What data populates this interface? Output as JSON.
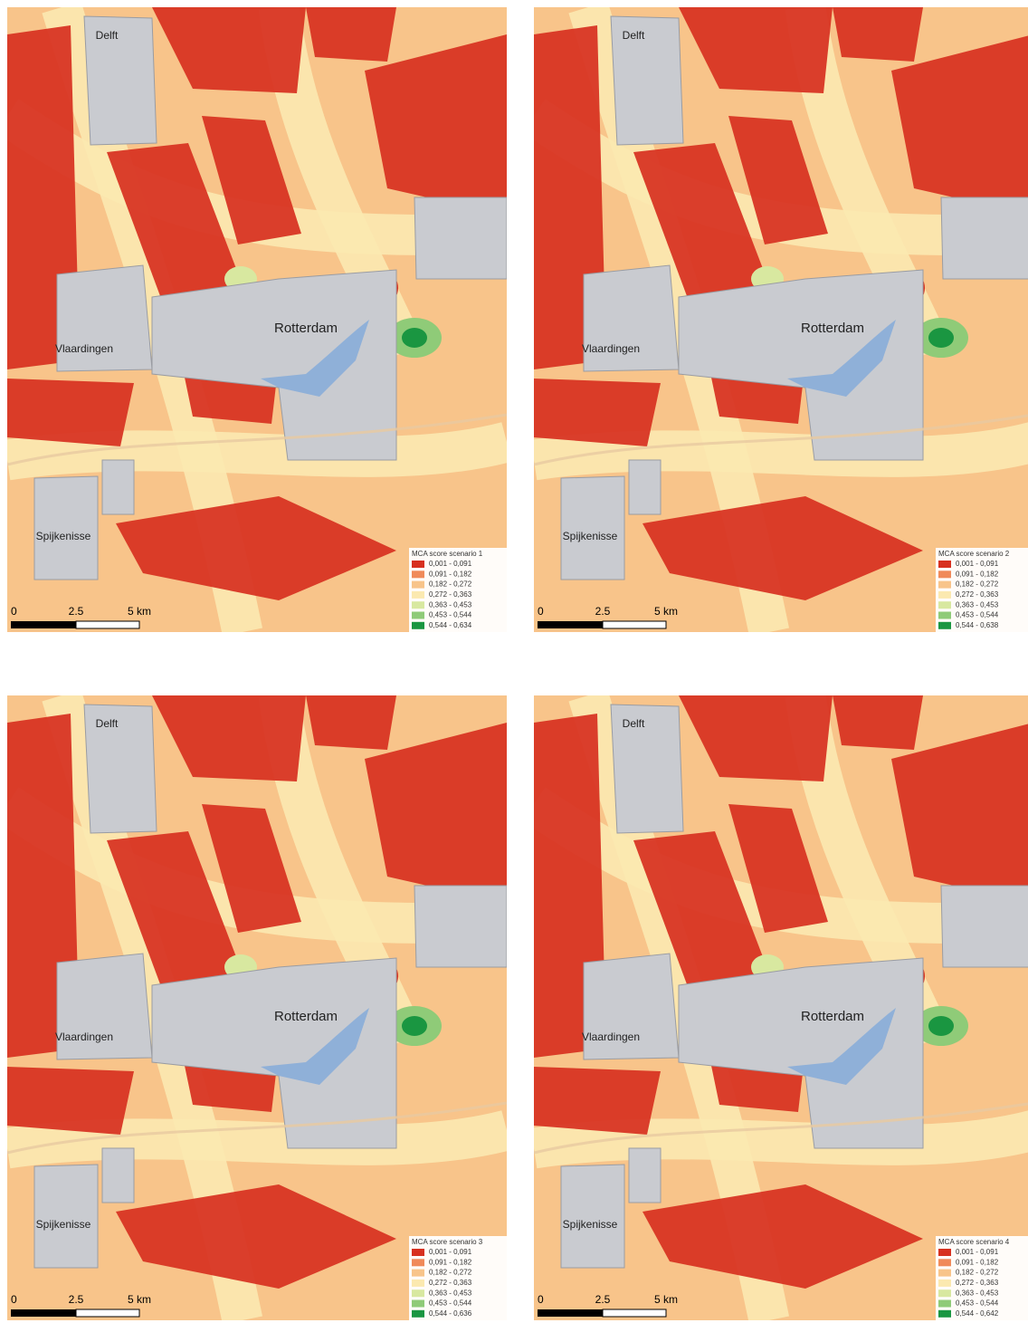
{
  "legend_colors": [
    "#d7301f",
    "#f08a5a",
    "#f8c48a",
    "#fbe9b0",
    "#d8e8a0",
    "#8fcb78",
    "#1a9641"
  ],
  "panels": [
    {
      "places": [
        "Delft",
        "Rotterdam",
        "Vlaardingen",
        "Spijkenisse"
      ],
      "legend": {
        "title": "MCA score scenario 1",
        "classes": [
          "0,001 - 0,091",
          "0,091 - 0,182",
          "0,182 - 0,272",
          "0,272 - 0,363",
          "0,363 - 0,453",
          "0,453 - 0,544",
          "0,544 - 0,634"
        ]
      },
      "scale": [
        "0",
        "2.5",
        "5 km"
      ]
    },
    {
      "places": [
        "Delft",
        "Rotterdam",
        "Vlaardingen",
        "Spijkenisse"
      ],
      "legend": {
        "title": "MCA score scenario 2",
        "classes": [
          "0,001 - 0,091",
          "0,091 - 0,182",
          "0,182 - 0,272",
          "0,272 - 0,363",
          "0,363 - 0,453",
          "0,453 - 0,544",
          "0,544 - 0,638"
        ]
      },
      "scale": [
        "0",
        "2.5",
        "5 km"
      ]
    },
    {
      "places": [
        "Delft",
        "Rotterdam",
        "Vlaardingen",
        "Spijkenisse"
      ],
      "legend": {
        "title": "MCA score scenario 3",
        "classes": [
          "0,001 - 0,091",
          "0,091 - 0,182",
          "0,182 - 0,272",
          "0,272 - 0,363",
          "0,363 - 0,453",
          "0,453 - 0,544",
          "0,544 - 0,636"
        ]
      },
      "scale": [
        "0",
        "2.5",
        "5 km"
      ]
    },
    {
      "places": [
        "Delft",
        "Rotterdam",
        "Vlaardingen",
        "Spijkenisse"
      ],
      "legend": {
        "title": "MCA score scenario 4",
        "classes": [
          "0,001 - 0,091",
          "0,091 - 0,182",
          "0,182 - 0,272",
          "0,272 - 0,363",
          "0,363 - 0,453",
          "0,453 - 0,544",
          "0,544 - 0,642"
        ]
      },
      "scale": [
        "0",
        "2.5",
        "5 km"
      ]
    }
  ]
}
